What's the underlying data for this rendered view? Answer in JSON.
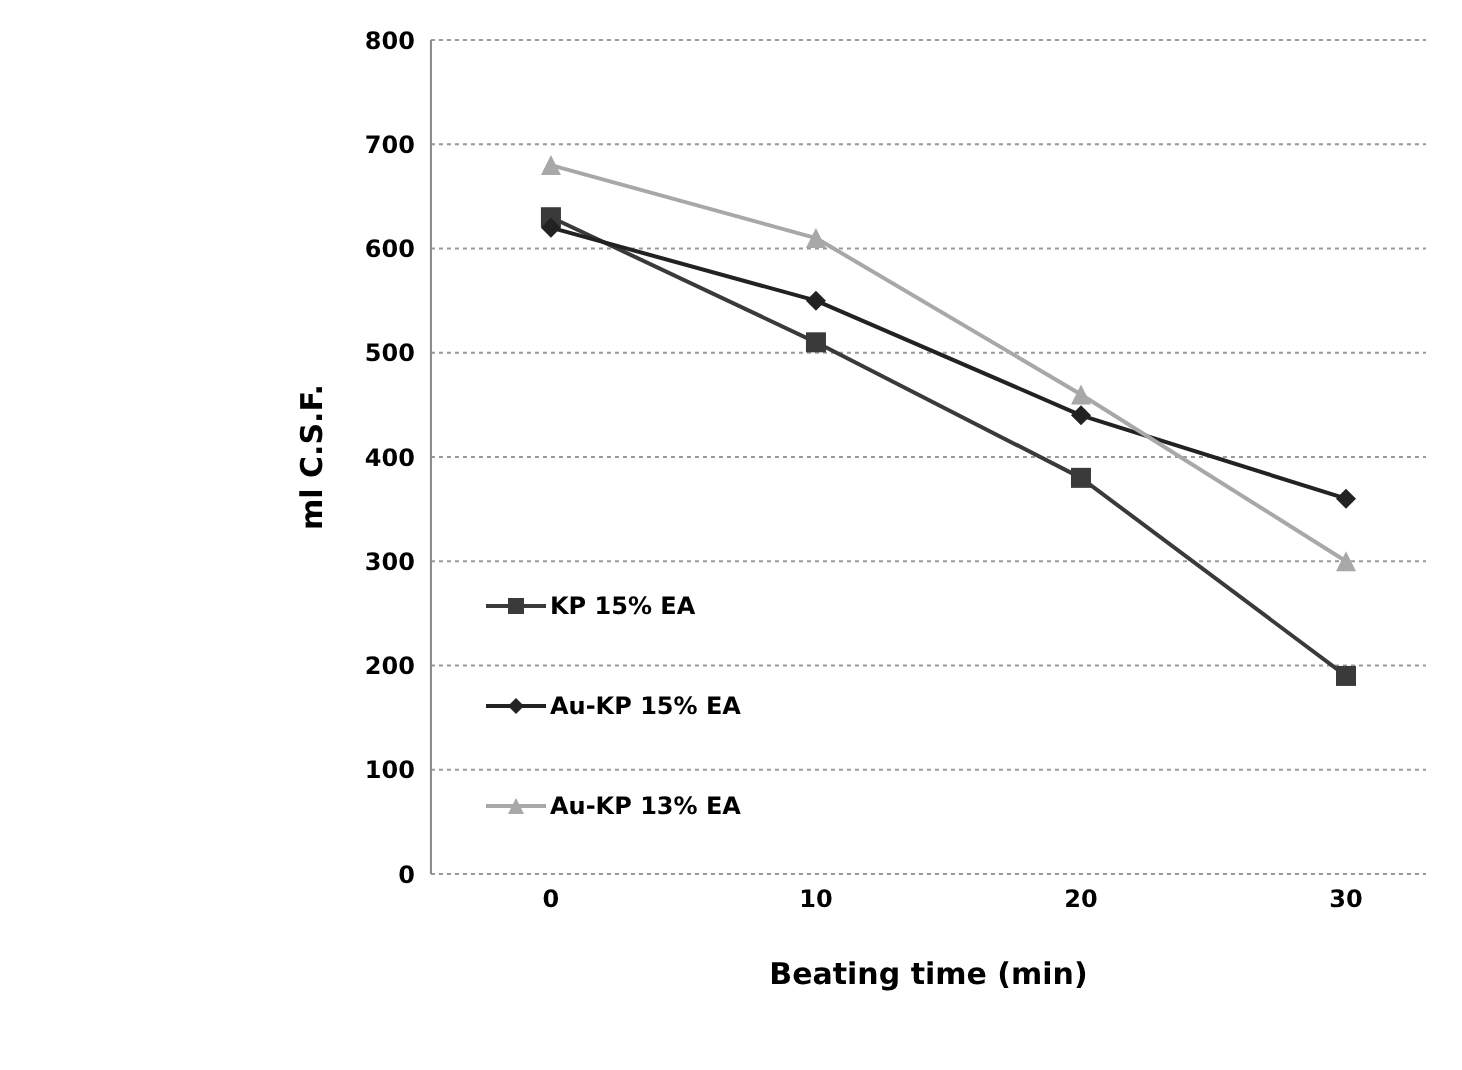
{
  "chart_data": {
    "type": "line",
    "xlabel": "Beating time (min)",
    "ylabel": "ml C.S.F.",
    "categories": [
      "0",
      "10",
      "20",
      "30"
    ],
    "series": [
      {
        "name": "KP 15% EA",
        "color": "#3a3a3a",
        "marker": "square",
        "values": [
          630,
          510,
          380,
          190
        ]
      },
      {
        "name": "Au-KP 15% EA",
        "color": "#222222",
        "marker": "diamond",
        "values": [
          620,
          550,
          440,
          360
        ]
      },
      {
        "name": "Au-KP 13% EA",
        "color": "#a8a8a8",
        "marker": "triangle",
        "values": [
          680,
          610,
          460,
          300
        ]
      }
    ],
    "ylim": [
      0,
      800
    ],
    "yticks": [
      0,
      100,
      200,
      300,
      400,
      500,
      600,
      700,
      800
    ],
    "grid": "y",
    "legend": "left"
  }
}
